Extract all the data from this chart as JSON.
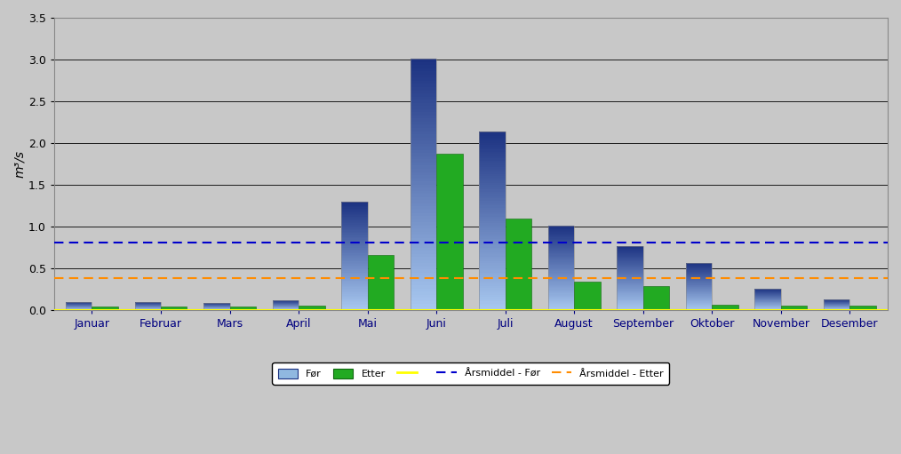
{
  "months": [
    "Januar",
    "Februar",
    "Mars",
    "April",
    "Mai",
    "Juni",
    "Juli",
    "August",
    "September",
    "Oktober",
    "November",
    "Desember"
  ],
  "before": [
    0.1,
    0.1,
    0.09,
    0.12,
    1.3,
    3.01,
    2.14,
    1.01,
    0.77,
    0.57,
    0.26,
    0.13
  ],
  "after": [
    0.05,
    0.05,
    0.05,
    0.06,
    0.66,
    1.87,
    1.1,
    0.34,
    0.29,
    0.07,
    0.06,
    0.06
  ],
  "arsmiddel_for": 0.81,
  "arsmiddel_etter": 0.39,
  "arsmiddel_yellow": 0.0,
  "ylabel": "m³/s",
  "ylim": [
    0,
    3.5
  ],
  "yticks": [
    0.0,
    0.5,
    1.0,
    1.5,
    2.0,
    2.5,
    3.0,
    3.5
  ],
  "bar_width": 0.38,
  "before_color_top": "#1a3080",
  "before_color_bottom": "#a8c8f0",
  "after_color": "#22aa22",
  "after_edge_color": "#116611",
  "background_color": "#c8c8c8",
  "fig_background_color": "#c8c8c8",
  "grid_color": "#000000",
  "legend_labels": [
    "Før",
    "Etter",
    "",
    "Årsmiddel - Før",
    "Årsmiddel - Etter"
  ],
  "arsmiddel_for_color": "#0000cc",
  "arsmiddel_etter_color": "#ff8c00",
  "arsmiddel_yellow_color": "#ffff00",
  "axis_fontsize": 9,
  "tick_fontsize": 9,
  "tick_color_x": "#000080",
  "tick_color_y": "#000000",
  "legend_fontsize": 8
}
